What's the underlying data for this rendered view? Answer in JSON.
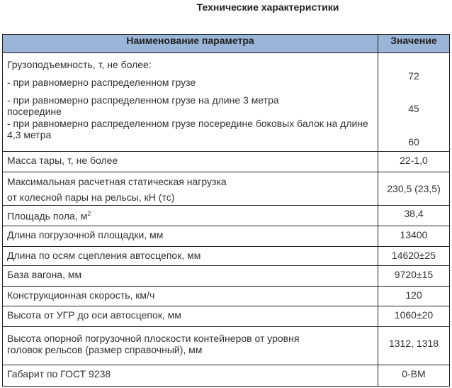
{
  "title": "Технические характеристики",
  "headers": {
    "name": "Наименование параметра",
    "value": "Значение"
  },
  "capacity": {
    "label": "Грузоподъемность, т, не более:",
    "items": [
      {
        "label": "- при равномерно распределенном грузе",
        "value": "72"
      },
      {
        "label": "- при равномерно распределенном грузе на длине 3 метра посередине",
        "value": "45"
      },
      {
        "label": "- при равномерно распределенном грузе посередине боковых балок на длине 4,3 метра",
        "value": "60"
      }
    ]
  },
  "rows": [
    {
      "label": "Масса тары, т, не более",
      "value": "22-1,0"
    },
    {
      "label": "Максимальная расчетная статическая нагрузка",
      "label2": "от колесной пары на рельсы, кН (тс)",
      "value": "230,5 (23,5)"
    },
    {
      "label": "Площадь пола, м",
      "sup": "2",
      "value": "38,4"
    },
    {
      "label": "Длина погрузочной площадки, мм",
      "value": "13400"
    },
    {
      "label": "Длина по осям сцепления автосцепок, мм",
      "value": "14620±25"
    },
    {
      "label": "База вагона, мм",
      "value": "9720±15"
    },
    {
      "label": "Конструкционная скорость, км/ч",
      "value": "120"
    },
    {
      "label": "Высота от УГР до оси автосцепок, мм",
      "value": "1060±20"
    },
    {
      "label": "Высота опорной погрузочной плоскости контейнеров от уровня головок рельсов (размер справочный), мм",
      "value": "1312, 1318"
    },
    {
      "label": "Габарит по ГОСТ 9238",
      "value": "0-ВМ"
    }
  ]
}
